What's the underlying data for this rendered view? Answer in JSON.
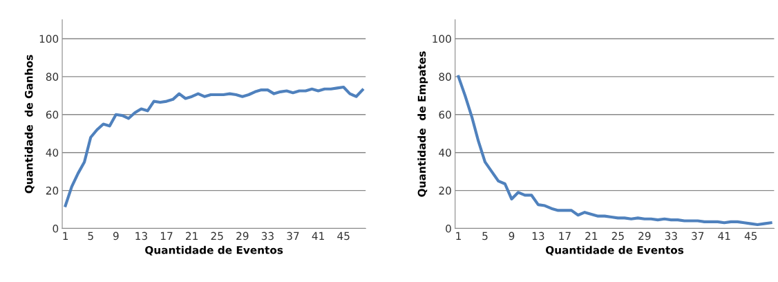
{
  "chart_data": [
    {
      "type": "line",
      "xlabel": "Quantidade de Eventos",
      "ylabel": "Quantidade  de Ganhos",
      "categories": [
        "1",
        null,
        null,
        null,
        "5",
        null,
        null,
        null,
        "9",
        null,
        null,
        null,
        "13",
        null,
        null,
        null,
        "17",
        null,
        null,
        null,
        "21",
        null,
        null,
        null,
        "25",
        null,
        null,
        null,
        "29",
        null,
        null,
        null,
        "33",
        null,
        null,
        null,
        "37",
        null,
        null,
        null,
        "41",
        null,
        null,
        null,
        "45",
        null,
        null,
        null
      ],
      "series": [
        {
          "color": "#4f81bd",
          "values": [
            12,
            22,
            29,
            35,
            48,
            52,
            55,
            54,
            60,
            59.5,
            58,
            61,
            63,
            62,
            67,
            66.5,
            67,
            68,
            71,
            68.5,
            69.5,
            71,
            69.5,
            70.5,
            70.5,
            70.5,
            71,
            70.5,
            69.5,
            70.5,
            72,
            73,
            73,
            71,
            72,
            72.5,
            71.5,
            72.5,
            72.5,
            73.5,
            72.5,
            73.5,
            73.5,
            74,
            74.5,
            71,
            69.5,
            73
          ]
        }
      ],
      "ylim": [
        0,
        110
      ],
      "yticks": [
        0,
        20,
        40,
        60,
        80,
        100
      ],
      "grid": "y",
      "marker": "none",
      "line_style": "solid"
    },
    {
      "type": "line",
      "xlabel": "Quantidade de Eventos",
      "ylabel": "Quantidade  de Empates",
      "categories": [
        "1",
        null,
        null,
        null,
        "5",
        null,
        null,
        null,
        "9",
        null,
        null,
        null,
        "13",
        null,
        null,
        null,
        "17",
        null,
        null,
        null,
        "21",
        null,
        null,
        null,
        "25",
        null,
        null,
        null,
        "29",
        null,
        null,
        null,
        "33",
        null,
        null,
        null,
        "37",
        null,
        null,
        null,
        "41",
        null,
        null,
        null,
        "45",
        null,
        null,
        null
      ],
      "series": [
        {
          "color": "#4f81bd",
          "values": [
            80,
            70,
            59,
            46,
            35,
            30,
            25,
            23.5,
            15.5,
            19,
            17.5,
            17.5,
            12.5,
            12,
            10.5,
            9.5,
            9.5,
            9.5,
            7,
            8.5,
            7.5,
            6.5,
            6.5,
            6,
            5.5,
            5.5,
            5,
            5.5,
            5,
            5,
            4.5,
            5,
            4.5,
            4.5,
            4,
            4,
            4,
            3.5,
            3.5,
            3.5,
            3,
            3.5,
            3.5,
            3,
            2.5,
            2,
            2.5,
            3
          ]
        }
      ],
      "ylim": [
        0,
        110
      ],
      "yticks": [
        0,
        20,
        40,
        60,
        80,
        100
      ],
      "grid": "y",
      "marker": "none",
      "line_style": "solid"
    }
  ]
}
